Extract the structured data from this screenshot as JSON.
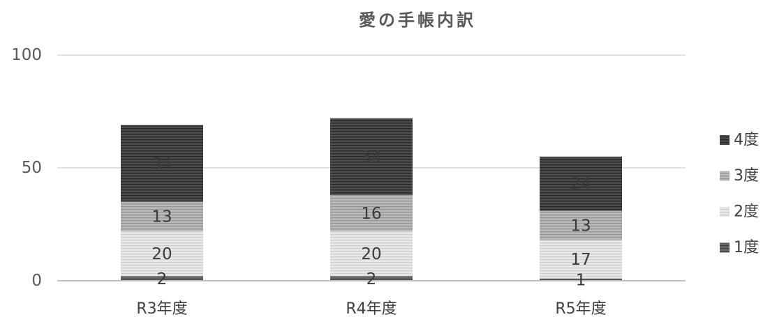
{
  "chart_data": {
    "type": "bar",
    "stacked": true,
    "title": "愛の手帳内訳",
    "categories": [
      "R3年度",
      "R4年度",
      "R5年度"
    ],
    "series": [
      {
        "name": "1度",
        "values": [
          2,
          2,
          1
        ],
        "color": "#6a6a6a",
        "stripe_color": "#3c3c3c"
      },
      {
        "name": "2度",
        "values": [
          20,
          20,
          17
        ],
        "color": "#e8e8e8",
        "stripe_color": "#cdcdcd"
      },
      {
        "name": "3度",
        "values": [
          13,
          16,
          13
        ],
        "color": "#b8b8b8",
        "stripe_color": "#959595"
      },
      {
        "name": "4度",
        "values": [
          34,
          34,
          24
        ],
        "color": "#4c4c4c",
        "stripe_color": "#262626"
      }
    ],
    "ylim": [
      0,
      100
    ],
    "yticks": [
      0,
      50,
      100
    ],
    "grid": true,
    "legend": "right"
  }
}
